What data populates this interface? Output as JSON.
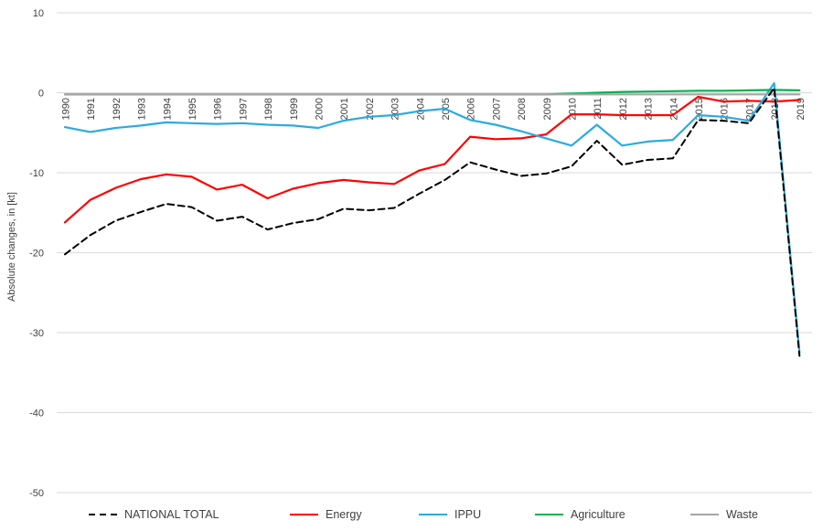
{
  "chart_data": {
    "type": "line",
    "title": "",
    "xlabel": "",
    "ylabel": "Absolute changes, in [kt]",
    "x": [
      "1990",
      "1991",
      "1992",
      "1993",
      "1994",
      "1995",
      "1996",
      "1997",
      "1998",
      "1999",
      "2000",
      "2001",
      "2002",
      "2003",
      "2004",
      "2005",
      "2006",
      "2007",
      "2008",
      "2009",
      "2010",
      "2011",
      "2012",
      "2013",
      "2014",
      "2015",
      "2016",
      "2017",
      "2018",
      "2019"
    ],
    "y_ticks": [
      10,
      0,
      -10,
      -20,
      -30,
      -40,
      -50
    ],
    "ylim": [
      -50,
      10
    ],
    "grid": true,
    "legend_position": "bottom",
    "colors": {
      "grid": "#d9d9d9",
      "text": "#404040"
    },
    "series": [
      {
        "name": "NATIONAL TOTAL",
        "color": "#000000",
        "dash": "dashed",
        "values": [
          -20.2,
          -17.8,
          -16.0,
          -14.9,
          -13.9,
          -14.3,
          -16.0,
          -15.5,
          -17.1,
          -16.3,
          -15.8,
          -14.5,
          -14.7,
          -14.4,
          -12.6,
          -10.9,
          -8.7,
          -9.6,
          -10.4,
          -10.1,
          -9.2,
          -6.0,
          -9.0,
          -8.4,
          -8.2,
          -3.4,
          -3.5,
          -3.8,
          0.6,
          -32.9
        ]
      },
      {
        "name": "Energy",
        "color": "#ff0000",
        "dash": "solid",
        "values": [
          -16.2,
          -13.4,
          -11.9,
          -10.8,
          -10.2,
          -10.5,
          -12.1,
          -11.5,
          -13.2,
          -12.0,
          -11.3,
          -10.9,
          -11.2,
          -11.4,
          -9.7,
          -8.9,
          -5.5,
          -5.8,
          -5.7,
          -5.2,
          -2.7,
          -2.7,
          -2.8,
          -2.8,
          -2.8,
          -0.5,
          -1.1,
          -1.0,
          -1.1,
          -0.9
        ]
      },
      {
        "name": "IPPU",
        "color": "#29abe2",
        "dash": "solid",
        "values": [
          -4.3,
          -4.9,
          -4.4,
          -4.1,
          -3.7,
          -3.8,
          -3.9,
          -3.8,
          -4.0,
          -4.1,
          -4.4,
          -3.5,
          -3.0,
          -2.8,
          -2.3,
          -2.0,
          -3.4,
          -4.0,
          -4.8,
          -5.7,
          -6.6,
          -4.0,
          -6.6,
          -6.1,
          -5.9,
          -2.8,
          -3.0,
          -3.5,
          1.2,
          -32.5
        ]
      },
      {
        "name": "Agriculture",
        "color": "#00b050",
        "dash": "solid",
        "values": [
          -0.2,
          -0.2,
          -0.2,
          -0.2,
          -0.2,
          -0.2,
          -0.2,
          -0.2,
          -0.2,
          -0.2,
          -0.2,
          -0.2,
          -0.2,
          -0.2,
          -0.2,
          -0.2,
          -0.2,
          -0.2,
          -0.2,
          -0.2,
          -0.1,
          0.0,
          0.1,
          0.15,
          0.2,
          0.25,
          0.25,
          0.3,
          0.35,
          0.3
        ]
      },
      {
        "name": "Waste",
        "color": "#a6a6a6",
        "dash": "solid",
        "values": [
          -0.2,
          -0.2,
          -0.2,
          -0.2,
          -0.2,
          -0.2,
          -0.2,
          -0.2,
          -0.2,
          -0.2,
          -0.2,
          -0.2,
          -0.2,
          -0.2,
          -0.2,
          -0.2,
          -0.2,
          -0.2,
          -0.2,
          -0.2,
          -0.2,
          -0.2,
          -0.2,
          -0.2,
          -0.2,
          -0.2,
          -0.2,
          -0.2,
          -0.2,
          -0.2
        ]
      }
    ]
  }
}
